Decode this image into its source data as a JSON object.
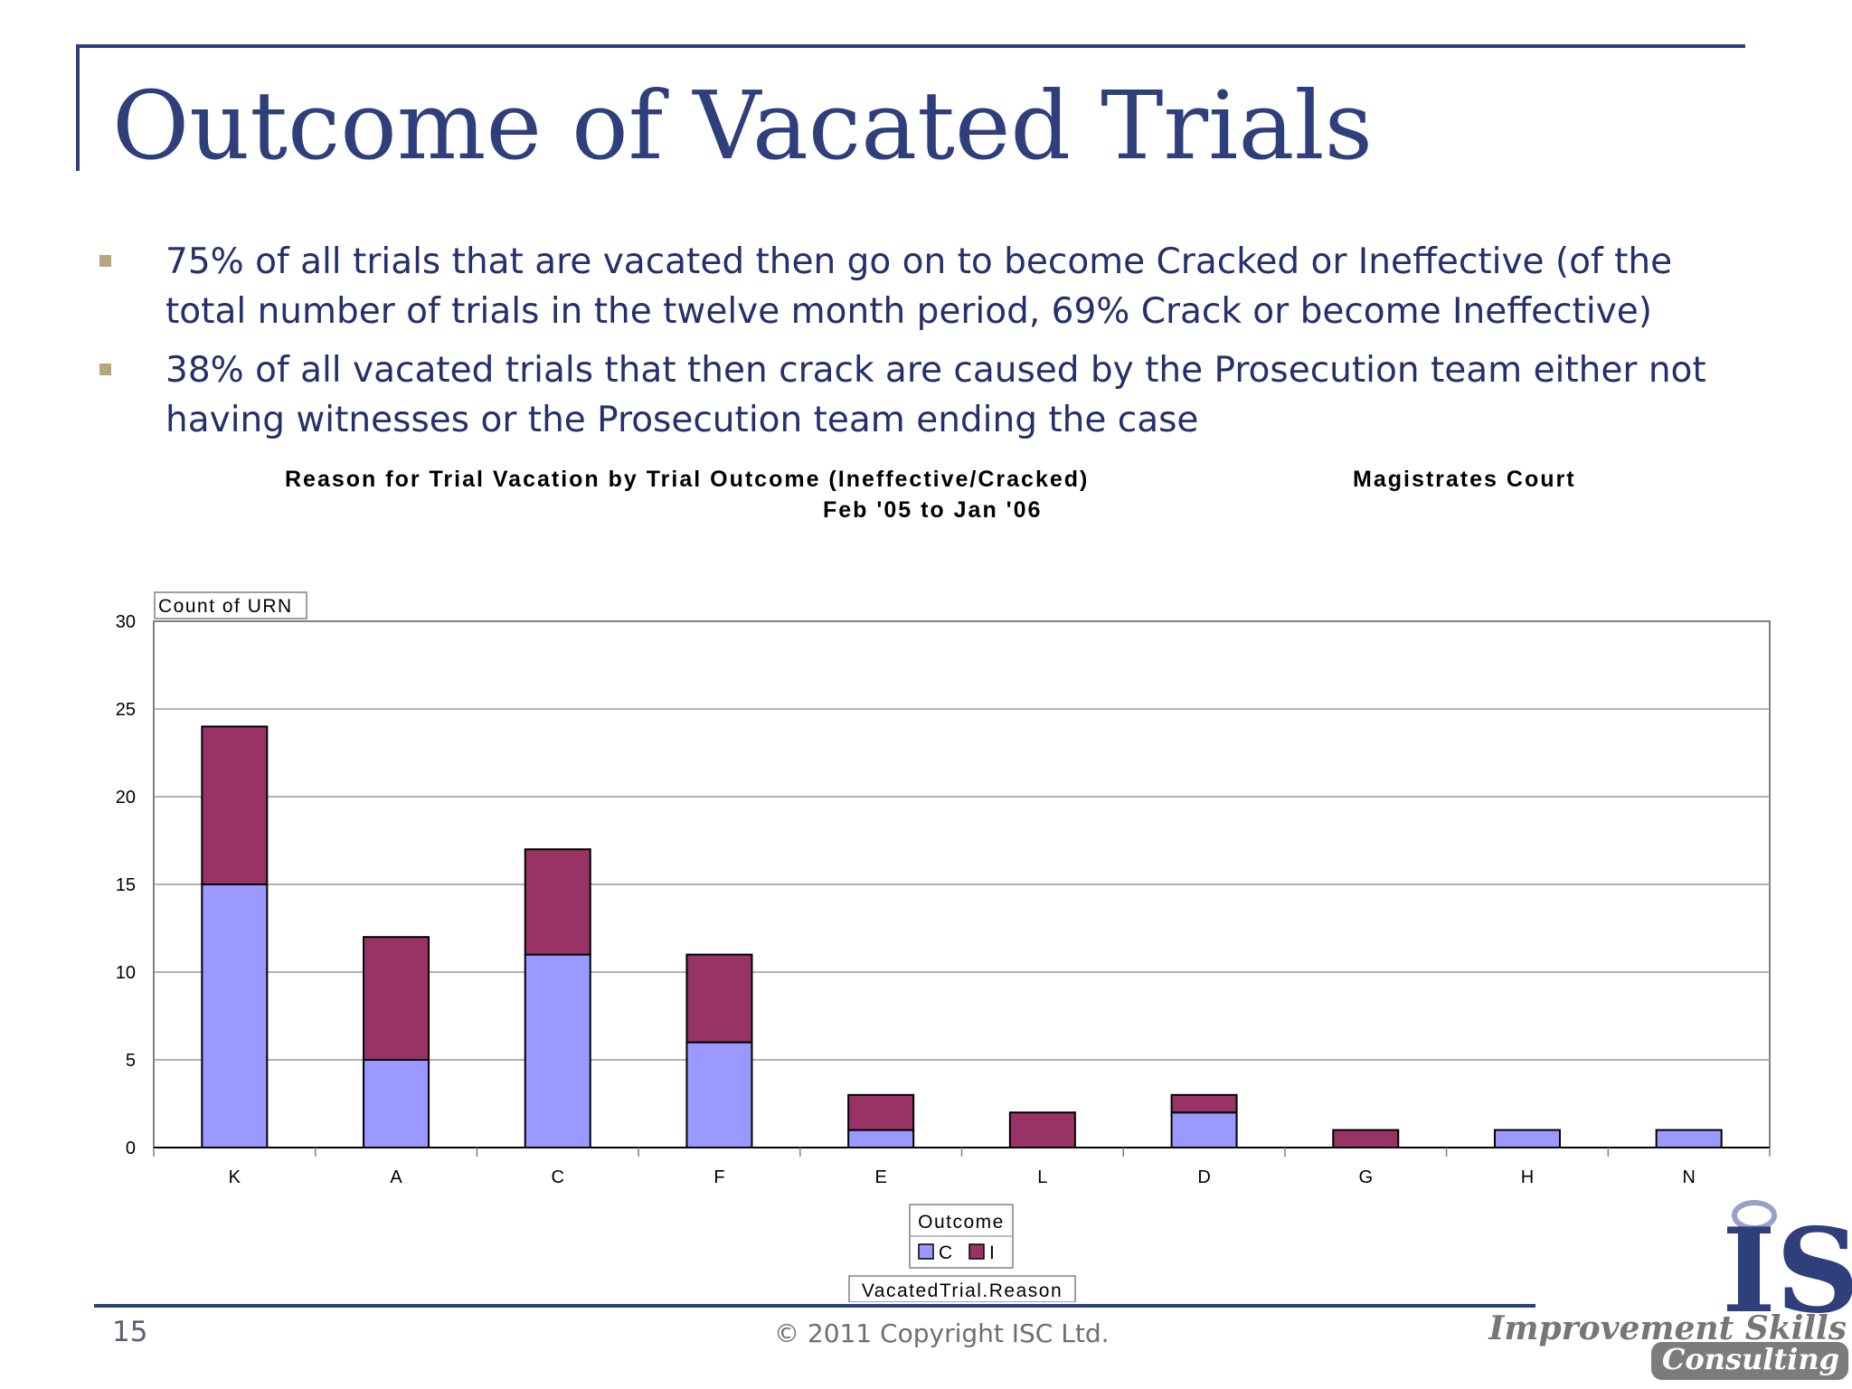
{
  "slide": {
    "title": "Outcome of Vacated Trials",
    "bullets": [
      "75% of all trials that are vacated then go on to become Cracked or Ineffective (of the total number of trials in the twelve month period, 69% Crack or become Ineffective)",
      "38% of all vacated trials that then crack are caused by the Prosecution team either not having witnesses or the Prosecution team ending the case"
    ],
    "page_number": "15",
    "copyright": "© 2011 Copyright ISC Ltd.",
    "logo": {
      "mark": "IS",
      "name": "Improvement Skills",
      "sub": "Consulting"
    }
  },
  "colors": {
    "title": "#2e3f7c",
    "series_C": "#9999ff",
    "series_I": "#993366",
    "bullet_marker": "#b6a67a"
  },
  "chart_data": {
    "type": "bar",
    "stacked": true,
    "title": "Reason for Trial Vacation by Trial Outcome (Ineffective/Cracked)",
    "title_right": "Magistrates Court",
    "subtitle": "Feb '05 to Jan '06",
    "ylabel": "Count of URN",
    "xlabel": "VacatedTrial.Reason",
    "ylim": [
      0,
      30
    ],
    "yticks": [
      0,
      5,
      10,
      15,
      20,
      25,
      30
    ],
    "grid": true,
    "categories": [
      "K",
      "A",
      "C",
      "F",
      "E",
      "L",
      "D",
      "G",
      "H",
      "N"
    ],
    "series": [
      {
        "name": "C",
        "values": [
          15,
          5,
          11,
          6,
          1,
          0,
          2,
          0,
          1,
          1
        ]
      },
      {
        "name": "I",
        "values": [
          9,
          7,
          6,
          5,
          2,
          2,
          1,
          1,
          0,
          0
        ]
      }
    ],
    "legend": {
      "title": "Outcome",
      "placement": "bottom"
    }
  }
}
